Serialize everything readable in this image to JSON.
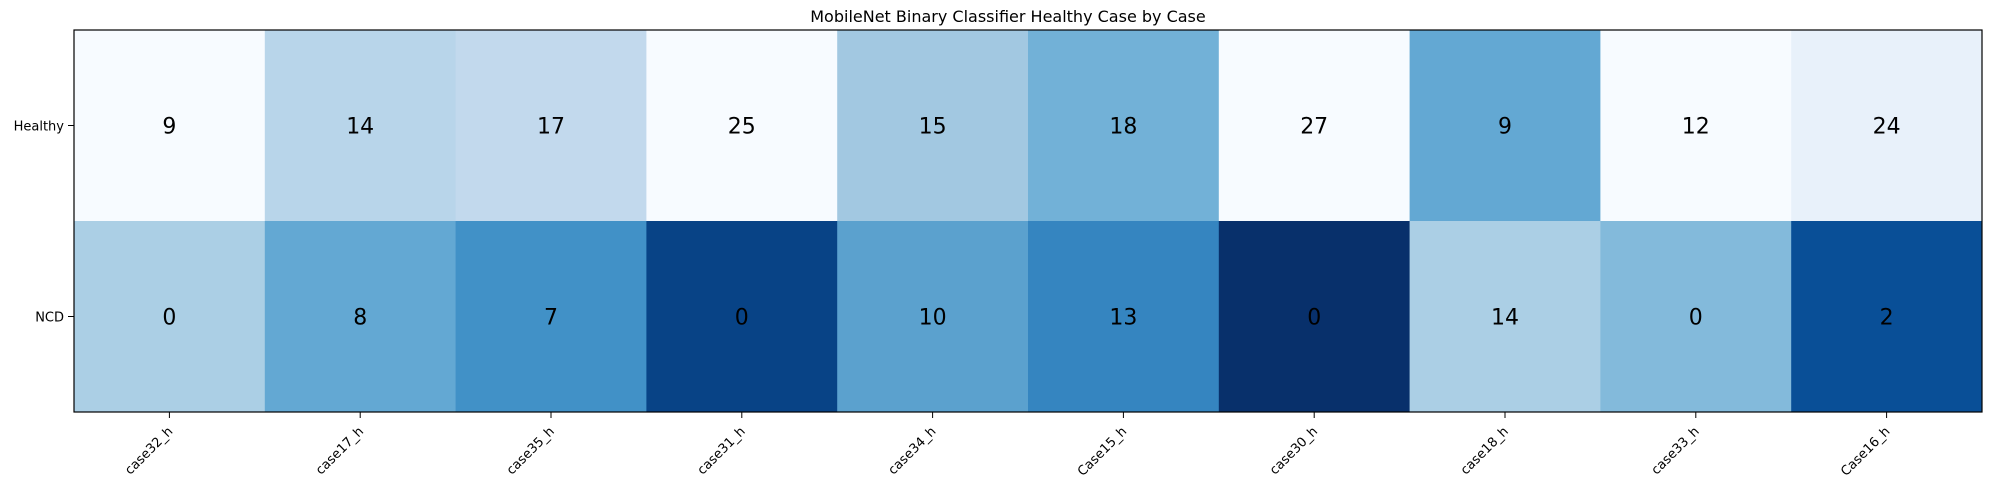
{
  "chart_data": {
    "type": "heatmap",
    "title": "MobileNet Binary Classifier Healthy Case by Case",
    "xlabel": "",
    "ylabel": "",
    "colormap": "Blues",
    "rows": [
      "Healthy",
      "NCD"
    ],
    "columns": [
      "case32_h",
      "case17_h",
      "case35_h",
      "case31_h",
      "case34_h",
      "Case15_h",
      "case30_h",
      "case18_h",
      "case33_h",
      "Case16_h"
    ],
    "values": [
      [
        9,
        14,
        17,
        25,
        15,
        18,
        27,
        9,
        12,
        24
      ],
      [
        0,
        8,
        7,
        0,
        10,
        13,
        0,
        14,
        0,
        2
      ]
    ],
    "cell_colors": [
      [
        "#f7fbff",
        "#b8d5ea",
        "#c2d9ed",
        "#f7fbff",
        "#a2c8e1",
        "#72b1d7",
        "#f7fbff",
        "#63a8d3",
        "#f7fbff",
        "#e8f1fa"
      ],
      [
        "#abcfe5",
        "#63a8d3",
        "#4191c7",
        "#084386",
        "#5ba1ce",
        "#3585c0",
        "#08306b",
        "#abcfe5",
        "#83badb",
        "#094f97"
      ]
    ],
    "annotation_color": "#000000",
    "grid": false,
    "legend": "none"
  }
}
